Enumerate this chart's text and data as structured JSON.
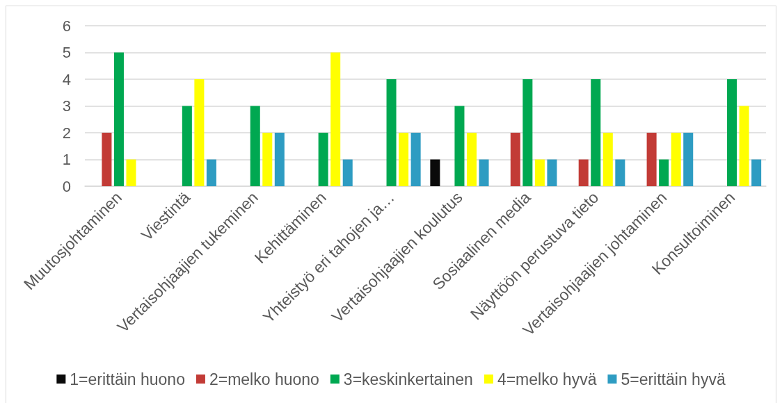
{
  "chart_data": {
    "type": "bar",
    "categories": [
      "Muutosjohtaminen",
      "Viestintä",
      "Vertaisohjaajien tukeminen",
      "Kehittäminen",
      "Yhteistyö eri tahojen ja…",
      "Vertaisohjaajien koulutus",
      "Sosiaalinen media",
      "Näyttöön perustuva tieto",
      "Vertaisohjaajien johtaminen",
      "Konsultoiminen"
    ],
    "series": [
      {
        "name": "1=erittäin huono",
        "color": "#0a0a0a",
        "values": [
          null,
          null,
          null,
          null,
          null,
          1,
          null,
          null,
          null,
          null
        ]
      },
      {
        "name": "2=melko huono",
        "color": "#c23b36",
        "values": [
          2,
          null,
          null,
          null,
          null,
          null,
          2,
          1,
          2,
          null
        ]
      },
      {
        "name": "3=keskinkertainen",
        "color": "#00a851",
        "values": [
          5,
          3,
          3,
          2,
          4,
          3,
          4,
          4,
          1,
          4
        ]
      },
      {
        "name": "4=melko hyvä",
        "color": "#ffff00",
        "values": [
          1,
          4,
          2,
          5,
          2,
          2,
          1,
          2,
          2,
          3
        ]
      },
      {
        "name": "5=erittäin hyvä",
        "color": "#2e9cc2",
        "values": [
          null,
          1,
          2,
          1,
          2,
          1,
          1,
          1,
          2,
          1
        ]
      }
    ],
    "ylim": [
      0,
      6
    ],
    "yticks": [
      0,
      1,
      2,
      3,
      4,
      5,
      6
    ],
    "grid": "y",
    "legend": "bottom"
  }
}
